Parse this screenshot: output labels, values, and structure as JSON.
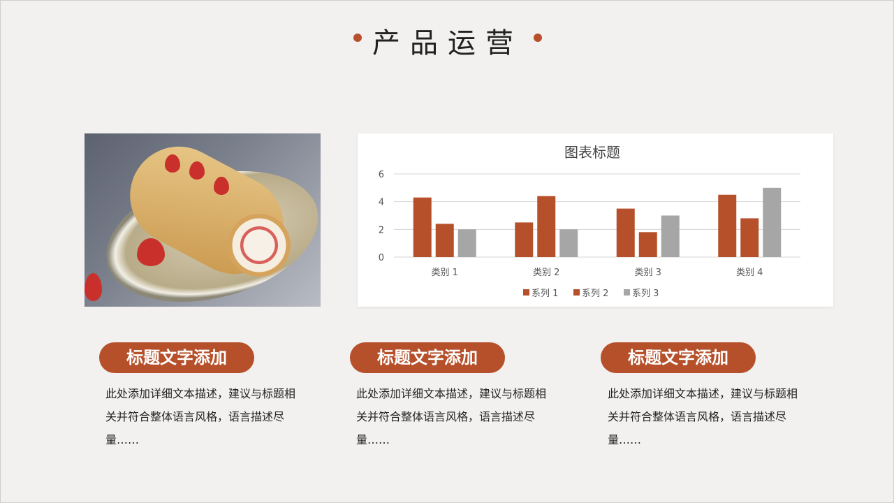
{
  "page": {
    "title": "产品运营",
    "accent": "#b5502b"
  },
  "cards": [
    {
      "title": "标题文字添加",
      "desc": "此处添加详细文本描述，建议与标题相关并符合整体语言风格，语言描述尽量……"
    },
    {
      "title": "标题文字添加",
      "desc": "此处添加详细文本描述，建议与标题相关并符合整体语言风格，语言描述尽量……"
    },
    {
      "title": "标题文字添加",
      "desc": "此处添加详细文本描述，建议与标题相关并符合整体语言风格，语言描述尽量……"
    }
  ],
  "chart_data": {
    "type": "bar",
    "title": "图表标题",
    "categories": [
      "类别 1",
      "类别 2",
      "类别 3",
      "类别 4"
    ],
    "series": [
      {
        "name": "系列 1",
        "values": [
          4.3,
          2.5,
          3.5,
          4.5
        ],
        "color": "#b5502b"
      },
      {
        "name": "系列 2",
        "values": [
          2.4,
          4.4,
          1.8,
          2.8
        ],
        "color": "#b5502b"
      },
      {
        "name": "系列 3",
        "values": [
          2,
          2,
          3,
          5
        ],
        "color": "#a6a6a6"
      }
    ],
    "yticks": [
      0,
      2,
      4,
      6
    ],
    "ylim": [
      0,
      6
    ],
    "grid": true,
    "legend": "bottom"
  }
}
